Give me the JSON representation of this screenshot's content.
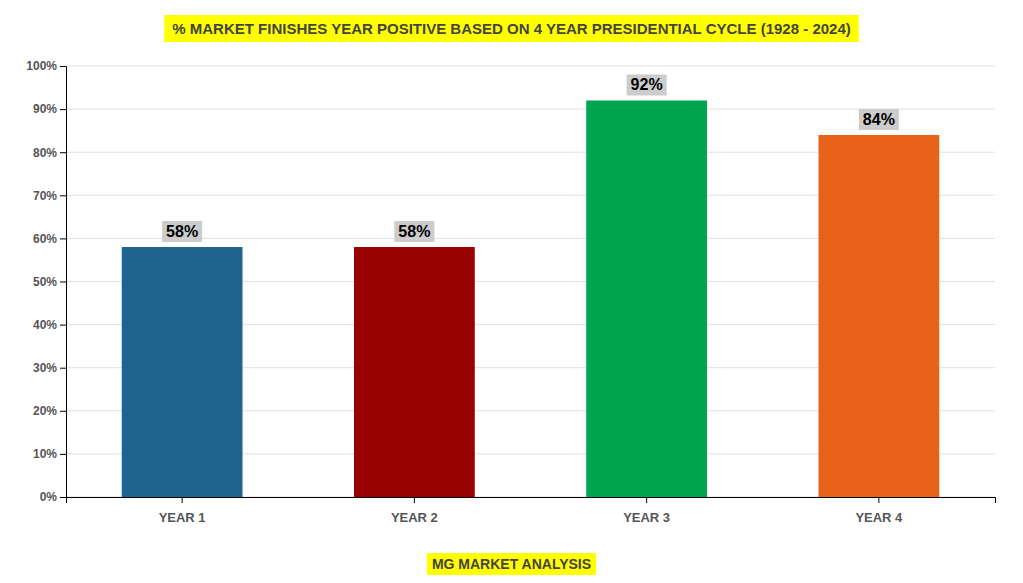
{
  "chart_data": {
    "type": "bar",
    "title": "% MARKET FINISHES YEAR POSITIVE BASED ON 4 YEAR PRESIDENTIAL CYCLE (1928 - 2024)",
    "subtitle": "MG MARKET ANALYSIS",
    "categories": [
      "YEAR 1",
      "YEAR 2",
      "YEAR 3",
      "YEAR 4"
    ],
    "values": [
      58,
      58,
      92,
      84
    ],
    "value_labels": [
      "58%",
      "58%",
      "92%",
      "84%"
    ],
    "colors": [
      "#1f6391",
      "#990000",
      "#00a550",
      "#e8621a"
    ],
    "ylim": [
      0,
      100
    ],
    "yticks": [
      {
        "value": 0,
        "label": "0%"
      },
      {
        "value": 10,
        "label": "10%"
      },
      {
        "value": 20,
        "label": "20%"
      },
      {
        "value": 30,
        "label": "30%"
      },
      {
        "value": 40,
        "label": "40%"
      },
      {
        "value": 50,
        "label": "50%"
      },
      {
        "value": 60,
        "label": "60%"
      },
      {
        "value": 70,
        "label": "70%"
      },
      {
        "value": 80,
        "label": "80%"
      },
      {
        "value": 90,
        "label": "90%"
      },
      {
        "value": 100,
        "label": "100%"
      }
    ],
    "grid": true,
    "data_labels": true
  }
}
